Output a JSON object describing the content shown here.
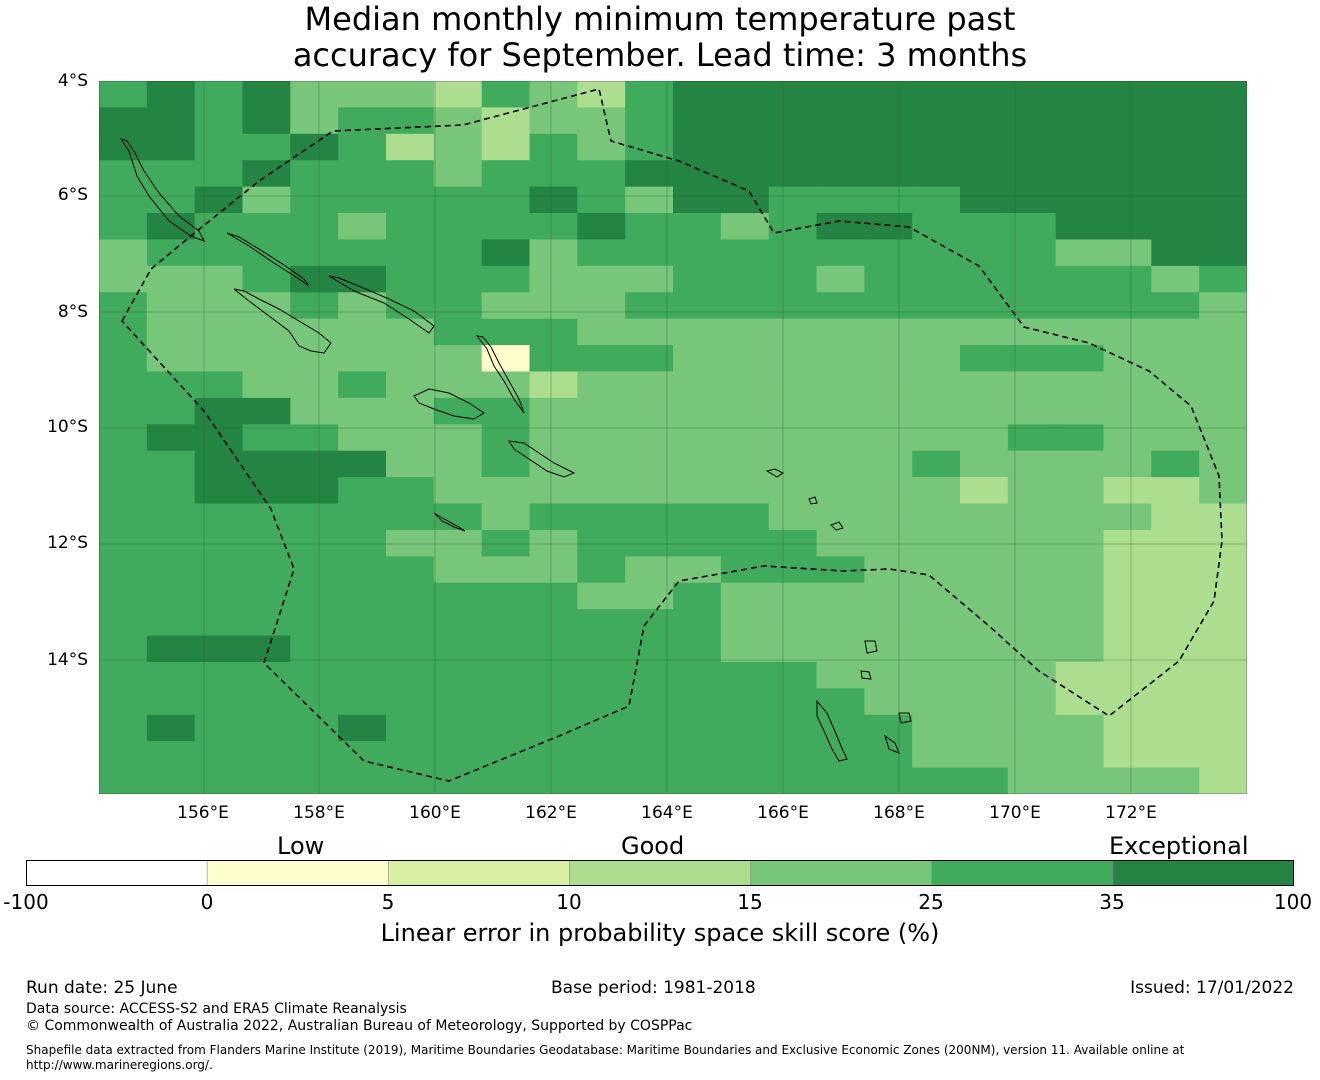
{
  "title": {
    "line1": "Median monthly minimum temperature past",
    "line2": "accuracy for September. Lead time: 3 months"
  },
  "map": {
    "lat_labels": [
      "4°S",
      "6°S",
      "8°S",
      "10°S",
      "12°S",
      "14°S"
    ],
    "lon_labels": [
      "156°E",
      "158°E",
      "160°E",
      "162°E",
      "164°E",
      "166°E",
      "168°E",
      "170°E",
      "172°E"
    ],
    "extent": {
      "lon_min": 154.2,
      "lon_max": 174.0,
      "lat_top": -4.0,
      "lat_bottom": -16.3
    },
    "grid_resolution_deg": 0.833,
    "colors": {
      "land_outline": "#000000",
      "eez_boundary": "#000000",
      "gridline": "#3a6b3a"
    }
  },
  "legend": {
    "band_low": "Low",
    "band_good": "Good",
    "band_exceptional": "Exceptional",
    "ticks": [
      "-100",
      "0",
      "5",
      "10",
      "15",
      "25",
      "35",
      "100"
    ],
    "colors": [
      "#ffffff",
      "#ffffcc",
      "#d9f0a3",
      "#addd8e",
      "#78c679",
      "#41ab5d",
      "#238443"
    ],
    "label": "Linear error in probability space skill score (%)"
  },
  "footer": {
    "run_date": "Run date: 25 June",
    "base_period": "Base period: 1981-2018",
    "issued": "Issued: 17/01/2022",
    "data_source": "Data source: ACCESS-S2 and ERA5 Climate Reanalysis",
    "copyright": "© Commonwealth of Australia 2022, Australian Bureau of Meteorology, Supported by COSPPac",
    "shapefile_line1": "Shapefile data extracted from Flanders Marine Institute (2019), Maritime Boundaries Geodatabase: Maritime Boundaries and Exclusive Economic Zones (200NM), version 11. Available online at",
    "shapefile_line2": "http://www.marineregions.org/."
  }
}
